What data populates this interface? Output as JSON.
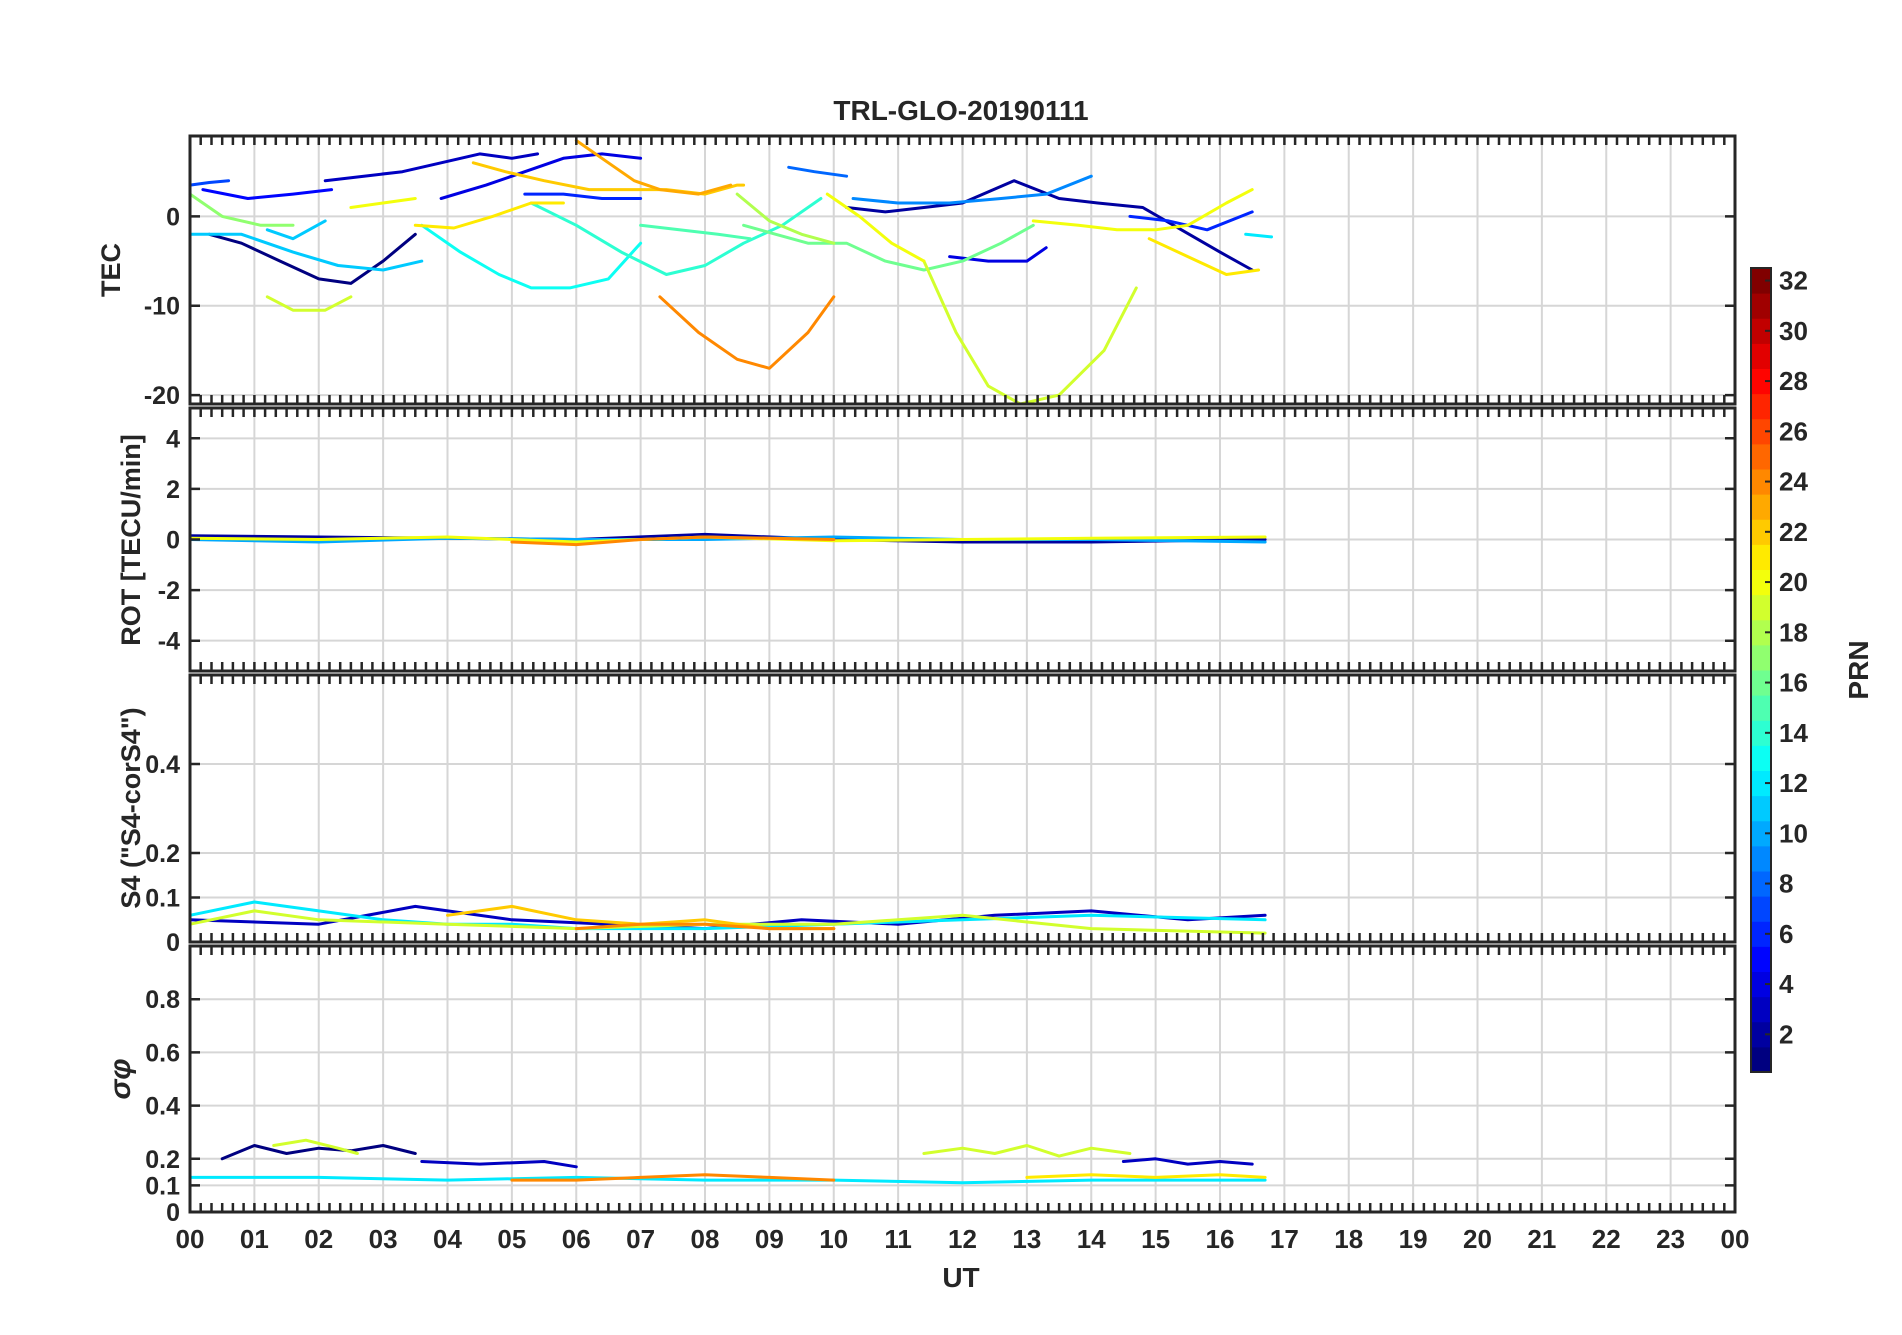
{
  "chart_data": {
    "type": "line",
    "title": "TRL-GLO-20190111",
    "xlabel": "UT",
    "x_ticks": [
      "00",
      "01",
      "02",
      "03",
      "04",
      "05",
      "06",
      "07",
      "08",
      "09",
      "10",
      "11",
      "12",
      "13",
      "14",
      "15",
      "16",
      "17",
      "18",
      "19",
      "20",
      "21",
      "22",
      "23",
      "00"
    ],
    "xlim": [
      0,
      24
    ],
    "grid": true,
    "colorbar": {
      "label": "PRN",
      "range": [
        1,
        32
      ],
      "ticks": [
        "2",
        "4",
        "6",
        "8",
        "10",
        "12",
        "14",
        "16",
        "18",
        "20",
        "22",
        "24",
        "26",
        "28",
        "30",
        "32"
      ],
      "colormap": "jet"
    },
    "panels": [
      {
        "ylabel": "TEC",
        "ylim": [
          -21,
          9
        ],
        "y_ticks": [
          "0",
          "-10",
          "-20"
        ],
        "y_tick_values": [
          0,
          -10,
          -20
        ],
        "series": [
          {
            "prn": 1,
            "x": [
              0.3,
              0.8,
              1.4,
              2.0,
              2.5,
              3.0,
              3.5
            ],
            "y": [
              -2,
              -3,
              -5,
              -7,
              -7.5,
              -5,
              -2
            ]
          },
          {
            "prn": 2,
            "x": [
              10.2,
              10.8,
              11.4,
              12.0,
              12.8,
              13.5,
              14.1,
              14.8,
              15.4,
              16.0,
              16.5
            ],
            "y": [
              1,
              0.5,
              1,
              1.5,
              4,
              2,
              1.5,
              1,
              -1.5,
              -4,
              -6
            ]
          },
          {
            "prn": 3,
            "x": [
              2.1,
              2.7,
              3.3,
              3.9,
              4.5,
              5.0,
              5.4
            ],
            "y": [
              4,
              4.5,
              5,
              6,
              7,
              6.5,
              7
            ]
          },
          {
            "prn": 4,
            "x": [
              3.9,
              4.6,
              5.2,
              5.8,
              6.4,
              7.0
            ],
            "y": [
              2,
              3.5,
              5,
              6.5,
              7,
              6.5
            ]
          },
          {
            "prn": 4,
            "x": [
              11.8,
              12.4,
              13.0,
              13.3
            ],
            "y": [
              -4.5,
              -5,
              -5,
              -3.5
            ]
          },
          {
            "prn": 5,
            "x": [
              0.2,
              0.9,
              1.6,
              2.2
            ],
            "y": [
              3,
              2,
              2.5,
              3
            ]
          },
          {
            "prn": 6,
            "x": [
              5.2,
              5.8,
              6.4,
              7.0
            ],
            "y": [
              2.5,
              2.5,
              2,
              2
            ]
          },
          {
            "prn": 6,
            "x": [
              14.6,
              15.2,
              15.8,
              16.5
            ],
            "y": [
              0,
              -0.5,
              -1.5,
              0.5
            ]
          },
          {
            "prn": 7,
            "x": [
              0,
              0.3,
              0.6
            ],
            "y": [
              3.5,
              3.8,
              4
            ]
          },
          {
            "prn": 8,
            "x": [
              9.3,
              9.7,
              10.2
            ],
            "y": [
              5.5,
              5,
              4.5
            ]
          },
          {
            "prn": 9,
            "x": [
              10.3,
              11.0,
              11.8,
              12.6,
              13.3,
              14.0
            ],
            "y": [
              2,
              1.5,
              1.5,
              2,
              2.5,
              4.5
            ]
          },
          {
            "prn": 11,
            "x": [
              0,
              0.8,
              1.6,
              2.3,
              3.0,
              3.6
            ],
            "y": [
              -2,
              -2,
              -4,
              -5.5,
              -6,
              -5
            ]
          },
          {
            "prn": 11,
            "x": [
              1.2,
              1.6,
              2.1
            ],
            "y": [
              -1.5,
              -2.5,
              -0.5
            ]
          },
          {
            "prn": 12,
            "x": [
              16.4,
              16.8
            ],
            "y": [
              -2,
              -2.3
            ]
          },
          {
            "prn": 13,
            "x": [
              3.6,
              4.2,
              4.8,
              5.3,
              5.9,
              6.5,
              7.0
            ],
            "y": [
              -1,
              -4,
              -6.5,
              -8,
              -8,
              -7,
              -3
            ]
          },
          {
            "prn": 14,
            "x": [
              5.3,
              6.0,
              6.7,
              7.4,
              8.0,
              8.6,
              9.2,
              9.8
            ],
            "y": [
              1.5,
              -1,
              -4,
              -6.5,
              -5.5,
              -3,
              -1,
              2
            ]
          },
          {
            "prn": 15,
            "x": [
              7.0,
              7.6,
              8.2,
              8.7
            ],
            "y": [
              -1,
              -1.5,
              -2,
              -2.5
            ]
          },
          {
            "prn": 16,
            "x": [
              8.6,
              9.1,
              9.6,
              10.2,
              10.8,
              11.4,
              12.0,
              12.6,
              13.1
            ],
            "y": [
              -1,
              -2,
              -3,
              -3,
              -5,
              -6,
              -5,
              -3,
              -1
            ]
          },
          {
            "prn": 17,
            "x": [
              0,
              0.5,
              1.1,
              1.6
            ],
            "y": [
              2.5,
              0,
              -1,
              -1
            ]
          },
          {
            "prn": 18,
            "x": [
              8.5,
              9.0,
              9.5,
              10.0
            ],
            "y": [
              2.5,
              -0.5,
              -2,
              -3
            ]
          },
          {
            "prn": 19,
            "x": [
              1.2,
              1.6,
              2.1,
              2.5
            ],
            "y": [
              -9,
              -10.5,
              -10.5,
              -9
            ]
          },
          {
            "prn": 19,
            "x": [
              11.4,
              11.9,
              12.4,
              12.9,
              13.5,
              14.2,
              14.7
            ],
            "y": [
              -5,
              -13,
              -19,
              -21,
              -20,
              -15,
              -8
            ]
          },
          {
            "prn": 20,
            "x": [
              2.5,
              3.0,
              3.5
            ],
            "y": [
              1,
              1.5,
              2
            ]
          },
          {
            "prn": 20,
            "x": [
              9.9,
              10.4,
              10.9,
              11.4
            ],
            "y": [
              2.5,
              0,
              -3,
              -5
            ]
          },
          {
            "prn": 20,
            "x": [
              13.1,
              13.8,
              14.4,
              15.0,
              15.5,
              16.1,
              16.5
            ],
            "y": [
              -0.5,
              -1,
              -1.5,
              -1.5,
              -1,
              1.5,
              3
            ]
          },
          {
            "prn": 21,
            "x": [
              3.5,
              4.1,
              4.7,
              5.3,
              5.8
            ],
            "y": [
              -1,
              -1.3,
              0,
              1.5,
              1.5
            ]
          },
          {
            "prn": 21,
            "x": [
              14.9,
              15.5,
              16.1,
              16.6
            ],
            "y": [
              -2.5,
              -4.5,
              -6.5,
              -6
            ]
          },
          {
            "prn": 22,
            "x": [
              4.4,
              4.9,
              5.5,
              6.2,
              6.8,
              7.4,
              8.0,
              8.5,
              8.6
            ],
            "y": [
              6,
              5,
              4,
              3,
              3,
              3,
              2.5,
              3.5,
              3.5
            ]
          },
          {
            "prn": 23,
            "x": [
              6.0,
              6.5,
              6.9,
              7.3,
              7.9,
              8.4
            ],
            "y": [
              8.5,
              6,
              4,
              3,
              2.5,
              3.5
            ]
          },
          {
            "prn": 24,
            "x": [
              7.3,
              7.9,
              8.5,
              9.0,
              9.6,
              10.0
            ],
            "y": [
              -9,
              -13,
              -16,
              -17,
              -13,
              -9
            ]
          }
        ]
      },
      {
        "ylabel": "ROT [TECU/min]",
        "ylim": [
          -5.2,
          5.2
        ],
        "y_ticks": [
          "4",
          "2",
          "0",
          "-2",
          "-4"
        ],
        "y_tick_values": [
          4,
          2,
          0,
          -2,
          -4
        ],
        "series": [
          {
            "prn": 2,
            "x": [
              0,
              2,
              4,
              6,
              8,
              10,
              12,
              14,
              16.7
            ],
            "y": [
              0.15,
              0.1,
              0.05,
              0,
              0.2,
              0,
              -0.1,
              -0.1,
              0
            ]
          },
          {
            "prn": 10,
            "x": [
              0,
              2,
              4,
              6,
              8,
              10,
              12,
              14,
              16.7
            ],
            "y": [
              0,
              -0.1,
              0.05,
              0,
              0,
              0.1,
              0,
              0,
              -0.1
            ]
          },
          {
            "prn": 20,
            "x": [
              0,
              2,
              4,
              6,
              8,
              10,
              12,
              14,
              16.7
            ],
            "y": [
              0.05,
              0,
              0.1,
              -0.1,
              0.1,
              -0.05,
              0,
              0.05,
              0.1
            ]
          },
          {
            "prn": 24,
            "x": [
              5,
              6,
              7,
              8,
              9,
              10
            ],
            "y": [
              -0.1,
              -0.2,
              0,
              0.1,
              0.05,
              0
            ]
          }
        ]
      },
      {
        "ylabel": "S4 (\"S4-corS4\")",
        "ylim": [
          0,
          0.6
        ],
        "y_ticks": [
          "0.4",
          "0.2",
          "0.1",
          "0"
        ],
        "y_tick_values": [
          0.4,
          0.2,
          0.1,
          0
        ],
        "series": [
          {
            "prn": 3,
            "x": [
              0,
              2,
              3.5,
              5,
              6.5,
              8,
              9.5,
              11,
              12.5,
              14,
              15.5,
              16.7
            ],
            "y": [
              0.05,
              0.04,
              0.08,
              0.05,
              0.04,
              0.03,
              0.05,
              0.04,
              0.06,
              0.07,
              0.05,
              0.06
            ]
          },
          {
            "prn": 12,
            "x": [
              0,
              1,
              2,
              3,
              4,
              5,
              6,
              8,
              10,
              12,
              14,
              16.7
            ],
            "y": [
              0.06,
              0.09,
              0.07,
              0.05,
              0.04,
              0.04,
              0.03,
              0.03,
              0.04,
              0.05,
              0.06,
              0.05
            ]
          },
          {
            "prn": 19,
            "x": [
              0,
              1,
              2,
              4,
              6,
              8,
              10,
              12,
              14,
              16.7
            ],
            "y": [
              0.04,
              0.07,
              0.05,
              0.04,
              0.03,
              0.04,
              0.04,
              0.06,
              0.03,
              0.02
            ]
          },
          {
            "prn": 22,
            "x": [
              4,
              5,
              6,
              7,
              8,
              9,
              10
            ],
            "y": [
              0.06,
              0.08,
              0.05,
              0.04,
              0.05,
              0.03,
              0.03
            ]
          },
          {
            "prn": 24,
            "x": [
              6,
              7,
              8,
              9,
              10
            ],
            "y": [
              0.03,
              0.04,
              0.04,
              0.03,
              0.03
            ]
          }
        ]
      },
      {
        "ylabel": "σφ",
        "ylim": [
          0,
          1
        ],
        "y_ticks": [
          "0.8",
          "0.6",
          "0.4",
          "0.2",
          "0.1",
          "0"
        ],
        "y_tick_values": [
          0.8,
          0.6,
          0.4,
          0.2,
          0.1,
          0
        ],
        "series": [
          {
            "prn": 1,
            "x": [
              0.5,
              1,
              1.5,
              2,
              2.5,
              3,
              3.5
            ],
            "y": [
              0.2,
              0.25,
              0.22,
              0.24,
              0.23,
              0.25,
              0.22
            ]
          },
          {
            "prn": 3,
            "x": [
              3.6,
              4.5,
              5.5,
              6
            ],
            "y": [
              0.19,
              0.18,
              0.19,
              0.17
            ]
          },
          {
            "prn": 3,
            "x": [
              14.5,
              15,
              15.5,
              16,
              16.5
            ],
            "y": [
              0.19,
              0.2,
              0.18,
              0.19,
              0.18
            ]
          },
          {
            "prn": 19,
            "x": [
              1.3,
              1.8,
              2.3,
              2.6
            ],
            "y": [
              0.25,
              0.27,
              0.24,
              0.22
            ]
          },
          {
            "prn": 19,
            "x": [
              11.4,
              12,
              12.5,
              13,
              13.5,
              14,
              14.6
            ],
            "y": [
              0.22,
              0.24,
              0.22,
              0.25,
              0.21,
              0.24,
              0.22
            ]
          },
          {
            "prn": 12,
            "x": [
              0,
              2,
              4,
              6,
              8,
              10,
              12,
              14,
              16.7
            ],
            "y": [
              0.13,
              0.13,
              0.12,
              0.13,
              0.12,
              0.12,
              0.11,
              0.12,
              0.12
            ]
          },
          {
            "prn": 24,
            "x": [
              5,
              6,
              7,
              8,
              9,
              10
            ],
            "y": [
              0.12,
              0.12,
              0.13,
              0.14,
              0.13,
              0.12
            ]
          },
          {
            "prn": 21,
            "x": [
              13,
              14,
              15,
              16,
              16.7
            ],
            "y": [
              0.13,
              0.14,
              0.13,
              0.14,
              0.13
            ]
          }
        ]
      }
    ]
  }
}
